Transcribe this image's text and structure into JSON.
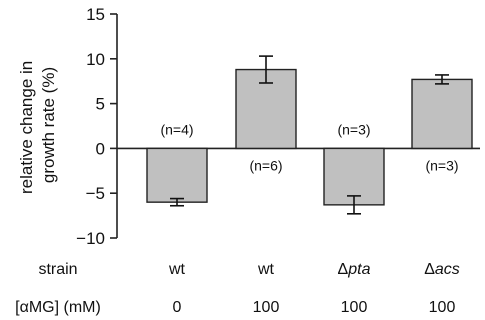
{
  "chart_data": {
    "type": "bar",
    "ylabel_lines": [
      "relative change in",
      "growth rate (%)"
    ],
    "ylim": [
      -10,
      15
    ],
    "yticks": [
      15,
      10,
      5,
      0,
      -5,
      -10
    ],
    "ytick_labels": [
      "15",
      "10",
      "5",
      "0",
      "−5",
      "−10"
    ],
    "colors": {
      "bar": "#c0c0c0",
      "stroke": "#222222"
    },
    "row_headers": {
      "strain": "strain",
      "amg": "[αMG] (mM)"
    },
    "bars": [
      {
        "strain_prefix": "",
        "strain_gene": "wt",
        "strain_italic": false,
        "amg": "0",
        "value": -6.0,
        "err": 0.4,
        "n": "(n=4)"
      },
      {
        "strain_prefix": "",
        "strain_gene": "wt",
        "strain_italic": false,
        "amg": "100",
        "value": 8.8,
        "err": 1.5,
        "n": "(n=6)"
      },
      {
        "strain_prefix": "Δ",
        "strain_gene": "pta",
        "strain_italic": true,
        "amg": "100",
        "value": -6.3,
        "err": 1.0,
        "n": "(n=3)"
      },
      {
        "strain_prefix": "Δ",
        "strain_gene": "acs",
        "strain_italic": true,
        "amg": "100",
        "value": 7.7,
        "err": 0.5,
        "n": "(n=3)"
      }
    ]
  }
}
